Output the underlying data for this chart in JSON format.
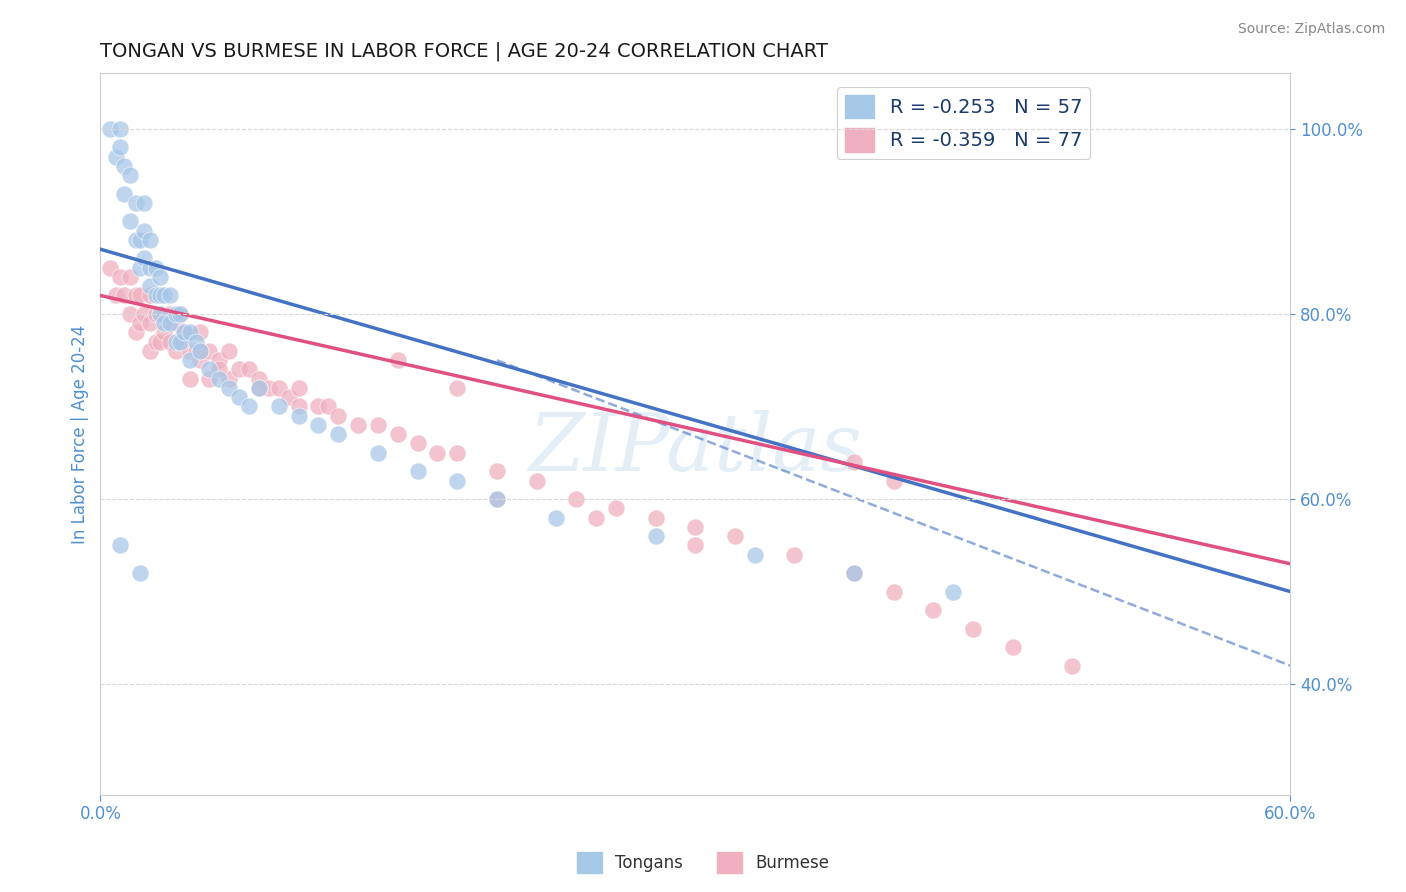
{
  "title": "TONGAN VS BURMESE IN LABOR FORCE | AGE 20-24 CORRELATION CHART",
  "source_text": "Source: ZipAtlas.com",
  "ylabel": "In Labor Force | Age 20-24",
  "ytick_values": [
    0.4,
    0.6,
    0.8,
    1.0
  ],
  "xlim": [
    0.0,
    0.6
  ],
  "ylim": [
    0.28,
    1.06
  ],
  "legend_label_1": "R = -0.253   N = 57",
  "legend_label_2": "R = -0.359   N = 77",
  "tongans_scatter_color": "#a8c8e8",
  "burmese_scatter_color": "#f0b0c0",
  "tongans_line_color": "#4472c4",
  "burmese_line_color": "#e05080",
  "tongans_line_style": "-",
  "burmese_line_style": "-",
  "background_color": "#ffffff",
  "grid_color": "#d8d8d8",
  "title_color": "#1a1a1a",
  "axis_label_color": "#5090d0",
  "watermark_text": "ZIPatlas",
  "bottom_legend_label_1": "Tongans",
  "bottom_legend_label_2": "Burmese",
  "tongans_line_y0": 0.87,
  "tongans_line_y1": 0.5,
  "burmese_line_y0": 0.82,
  "burmese_line_y1": 0.53,
  "tongans_x": [
    0.005,
    0.008,
    0.01,
    0.01,
    0.012,
    0.012,
    0.015,
    0.015,
    0.018,
    0.018,
    0.02,
    0.02,
    0.022,
    0.022,
    0.022,
    0.025,
    0.025,
    0.025,
    0.028,
    0.028,
    0.03,
    0.03,
    0.03,
    0.032,
    0.032,
    0.035,
    0.035,
    0.038,
    0.038,
    0.04,
    0.04,
    0.042,
    0.045,
    0.045,
    0.048,
    0.05,
    0.055,
    0.06,
    0.065,
    0.07,
    0.075,
    0.08,
    0.09,
    0.1,
    0.11,
    0.12,
    0.14,
    0.16,
    0.18,
    0.2,
    0.23,
    0.28,
    0.33,
    0.38,
    0.43,
    0.01,
    0.02
  ],
  "tongans_y": [
    1.0,
    0.97,
    1.0,
    0.98,
    0.96,
    0.93,
    0.9,
    0.95,
    0.92,
    0.88,
    0.88,
    0.85,
    0.92,
    0.89,
    0.86,
    0.88,
    0.85,
    0.83,
    0.85,
    0.82,
    0.84,
    0.82,
    0.8,
    0.82,
    0.79,
    0.82,
    0.79,
    0.8,
    0.77,
    0.8,
    0.77,
    0.78,
    0.78,
    0.75,
    0.77,
    0.76,
    0.74,
    0.73,
    0.72,
    0.71,
    0.7,
    0.72,
    0.7,
    0.69,
    0.68,
    0.67,
    0.65,
    0.63,
    0.62,
    0.6,
    0.58,
    0.56,
    0.54,
    0.52,
    0.5,
    0.55,
    0.52
  ],
  "burmese_x": [
    0.005,
    0.008,
    0.01,
    0.012,
    0.015,
    0.015,
    0.018,
    0.018,
    0.02,
    0.02,
    0.022,
    0.025,
    0.025,
    0.025,
    0.028,
    0.028,
    0.03,
    0.03,
    0.032,
    0.035,
    0.035,
    0.038,
    0.038,
    0.04,
    0.04,
    0.042,
    0.045,
    0.045,
    0.048,
    0.05,
    0.05,
    0.055,
    0.055,
    0.06,
    0.065,
    0.065,
    0.07,
    0.075,
    0.08,
    0.085,
    0.09,
    0.095,
    0.1,
    0.11,
    0.115,
    0.12,
    0.13,
    0.14,
    0.15,
    0.16,
    0.17,
    0.18,
    0.2,
    0.22,
    0.24,
    0.26,
    0.28,
    0.3,
    0.32,
    0.35,
    0.38,
    0.4,
    0.42,
    0.44,
    0.46,
    0.49,
    0.38,
    0.4,
    0.2,
    0.25,
    0.3,
    0.15,
    0.18,
    0.05,
    0.06,
    0.08,
    0.1
  ],
  "burmese_y": [
    0.85,
    0.82,
    0.84,
    0.82,
    0.84,
    0.8,
    0.82,
    0.78,
    0.82,
    0.79,
    0.8,
    0.82,
    0.79,
    0.76,
    0.8,
    0.77,
    0.8,
    0.77,
    0.78,
    0.8,
    0.77,
    0.79,
    0.76,
    0.8,
    0.77,
    0.78,
    0.76,
    0.73,
    0.76,
    0.78,
    0.75,
    0.76,
    0.73,
    0.75,
    0.76,
    0.73,
    0.74,
    0.74,
    0.73,
    0.72,
    0.72,
    0.71,
    0.72,
    0.7,
    0.7,
    0.69,
    0.68,
    0.68,
    0.67,
    0.66,
    0.65,
    0.65,
    0.63,
    0.62,
    0.6,
    0.59,
    0.58,
    0.57,
    0.56,
    0.54,
    0.52,
    0.5,
    0.48,
    0.46,
    0.44,
    0.42,
    0.64,
    0.62,
    0.6,
    0.58,
    0.55,
    0.75,
    0.72,
    0.76,
    0.74,
    0.72,
    0.7
  ]
}
